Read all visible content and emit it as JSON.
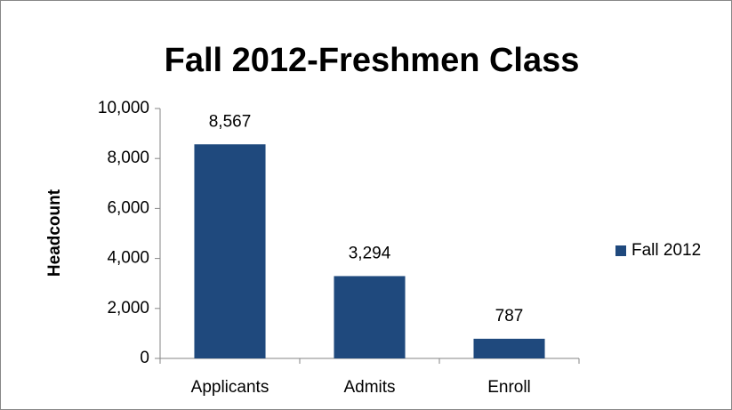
{
  "chart_data": {
    "type": "bar",
    "title": "Fall 2012-Freshmen Class",
    "y_label": "Headcount",
    "categories": [
      "Applicants",
      "Admits",
      "Enroll"
    ],
    "series": [
      {
        "name": "Fall 2012",
        "color": "#1f497d",
        "values": [
          8567,
          3294,
          787
        ],
        "value_labels": [
          "8,567",
          "3,294",
          "787"
        ]
      }
    ],
    "ylim": [
      0,
      10000
    ],
    "yticks": [
      0,
      {
        "value": 2000,
        "label": "2,000"
      },
      {
        "value": 4000,
        "label": "4,000"
      },
      {
        "value": 6000,
        "label": "6,000"
      },
      {
        "value": 8000,
        "label": "8,000"
      },
      {
        "value": 10000,
        "label": "10,000"
      }
    ],
    "grid": false,
    "legend": "right"
  }
}
